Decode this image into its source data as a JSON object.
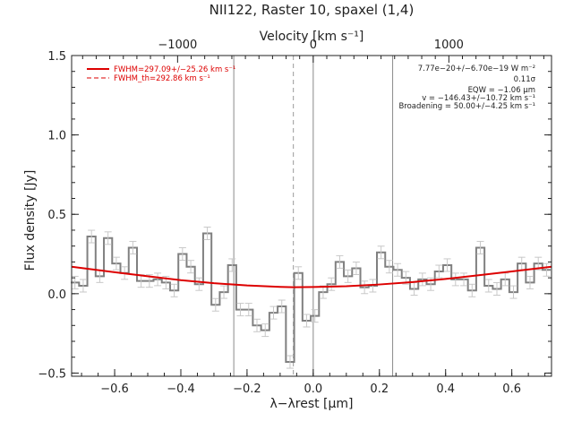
{
  "chart_data": {
    "type": "line",
    "title": "NII122, Raster 10, spaxel (1,4)",
    "xlabel": "λ−λrest [μm]",
    "ylabel": "Flux density [Jy]",
    "top_axis_label": "Velocity [km s⁻¹]",
    "xlim": [
      -0.73,
      0.72
    ],
    "ylim": [
      -0.52,
      1.5
    ],
    "x_ticks": [
      -0.6,
      -0.4,
      -0.2,
      0.0,
      0.2,
      0.4,
      0.6
    ],
    "x_tick_labels": [
      "−0.6",
      "−0.4",
      "−0.2",
      "0.0",
      "0.2",
      "0.4",
      "0.6"
    ],
    "y_ticks": [
      -0.5,
      0.0,
      0.5,
      1.0,
      1.5
    ],
    "y_tick_labels": [
      "−0.5",
      "0.0",
      "0.5",
      "1.0",
      "1.5"
    ],
    "top_ticks_kms": [
      -1000,
      0,
      1000
    ],
    "top_tick_labels": [
      "−1000",
      "0",
      "1000"
    ],
    "kms_per_micron": 2440,
    "vlines_solid": [
      -0.24,
      0.0,
      0.24
    ],
    "vline_dashed": -0.06,
    "legend": [
      {
        "label": "FWHM=297.09+/−25.26 km s⁻¹",
        "style": "solid",
        "color": "#dd0000"
      },
      {
        "label": "FWHM_th=292.86 km s⁻¹",
        "style": "dashed",
        "color": "#dd0000"
      }
    ],
    "annotations": [
      "7.77e−20+/−6.70e−19 W m⁻²",
      "0.11σ",
      "EQW = −1.06 μm",
      "v = −146.43+/−10.72 km s⁻¹",
      "Broadening = 50.00+/−4.25 km s⁻¹"
    ],
    "series": [
      {
        "style": "step",
        "color": "#808080",
        "x": [
          -0.72,
          -0.695,
          -0.67,
          -0.645,
          -0.62,
          -0.595,
          -0.57,
          -0.545,
          -0.52,
          -0.495,
          -0.47,
          -0.445,
          -0.42,
          -0.395,
          -0.37,
          -0.345,
          -0.32,
          -0.295,
          -0.27,
          -0.245,
          -0.22,
          -0.195,
          -0.17,
          -0.145,
          -0.12,
          -0.095,
          -0.07,
          -0.045,
          -0.02,
          0.005,
          0.03,
          0.055,
          0.08,
          0.105,
          0.13,
          0.155,
          0.18,
          0.205,
          0.23,
          0.255,
          0.28,
          0.305,
          0.33,
          0.355,
          0.38,
          0.405,
          0.43,
          0.455,
          0.48,
          0.505,
          0.53,
          0.555,
          0.58,
          0.605,
          0.63,
          0.655,
          0.68,
          0.705
        ],
        "y": [
          0.07,
          0.05,
          0.36,
          0.11,
          0.35,
          0.19,
          0.13,
          0.29,
          0.08,
          0.08,
          0.09,
          0.07,
          0.02,
          0.25,
          0.17,
          0.06,
          0.38,
          -0.07,
          0.01,
          0.18,
          -0.1,
          -0.1,
          -0.2,
          -0.23,
          -0.12,
          -0.08,
          -0.43,
          0.13,
          -0.17,
          -0.14,
          0.01,
          0.06,
          0.2,
          0.11,
          0.16,
          0.04,
          0.05,
          0.26,
          0.17,
          0.15,
          0.1,
          0.03,
          0.09,
          0.06,
          0.14,
          0.18,
          0.09,
          0.09,
          0.02,
          0.29,
          0.05,
          0.03,
          0.09,
          0.01,
          0.19,
          0.07,
          0.19,
          0.15
        ]
      },
      {
        "style": "smooth",
        "color": "#dd0000",
        "x": [
          -0.73,
          -0.6,
          -0.5,
          -0.4,
          -0.3,
          -0.2,
          -0.1,
          -0.06,
          0.0,
          0.1,
          0.2,
          0.3,
          0.4,
          0.5,
          0.6,
          0.72
        ],
        "y": [
          0.17,
          0.135,
          0.11,
          0.085,
          0.066,
          0.052,
          0.043,
          0.041,
          0.042,
          0.047,
          0.058,
          0.073,
          0.093,
          0.116,
          0.14,
          0.17
        ]
      }
    ]
  }
}
